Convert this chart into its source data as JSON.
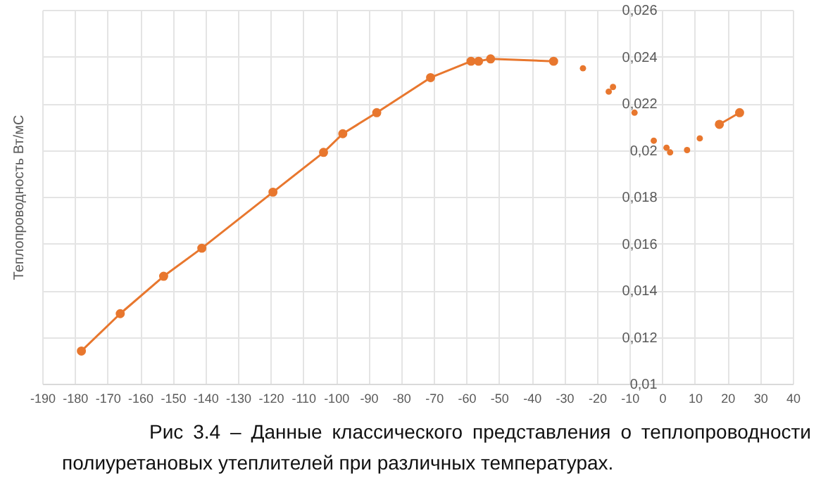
{
  "chart_data": {
    "type": "line",
    "ylabel": "Теплопроводность Вт/мС",
    "annotations": [
      "Рис 3.4 – Данные классического представления о теплопроводности полиуретановых утеплителей при различных температурах."
    ],
    "series": [
      {
        "color": "#e8772e",
        "x": [
          -178,
          -166.1,
          -152.8,
          -141.1,
          -119.3,
          -103.8,
          -97.9,
          -87.5,
          -71,
          -58.6,
          -56.3,
          -52.6,
          -33.3
        ],
        "values": [
          0.0114,
          0.013,
          0.0146,
          0.0158,
          0.0182,
          0.0199,
          0.0207,
          0.0216,
          0.0231,
          0.0238,
          0.0238,
          0.0239,
          0.0238
        ]
      },
      {
        "type": "scatter",
        "color": "#e8772e",
        "x": [
          -24.3,
          -16.4,
          -15.1,
          -8.5,
          -2.6,
          1.3,
          2.4,
          7.6,
          11.5
        ],
        "values": [
          0.0235,
          0.0225,
          0.0227,
          0.0216,
          0.0204,
          0.0201,
          0.0199,
          0.02,
          0.0205
        ]
      },
      {
        "color": "#e8772e",
        "x": [
          17.5,
          23.7
        ],
        "values": [
          0.0211,
          0.0216
        ]
      }
    ],
    "xlim": [
      -190,
      40
    ],
    "xticks": [
      -190,
      -180,
      -170,
      -160,
      -150,
      -140,
      -130,
      -120,
      -110,
      -100,
      -90,
      -80,
      -70,
      -60,
      -50,
      -40,
      -30,
      -20,
      -10,
      0,
      10,
      20,
      30,
      40
    ],
    "ylim": [
      0.01,
      0.026
    ],
    "yticks": [
      {
        "value": 0.01,
        "label": "0,01"
      },
      {
        "value": 0.012,
        "label": "0,012"
      },
      {
        "value": 0.014,
        "label": "0,014"
      },
      {
        "value": 0.016,
        "label": "0,016"
      },
      {
        "value": 0.018,
        "label": "0,018"
      },
      {
        "value": 0.02,
        "label": "0,02"
      },
      {
        "value": 0.022,
        "label": "0,022"
      },
      {
        "value": 0.024,
        "label": "0,024"
      },
      {
        "value": 0.026,
        "label": "0,026"
      }
    ],
    "grid": true,
    "marker": "circle"
  }
}
